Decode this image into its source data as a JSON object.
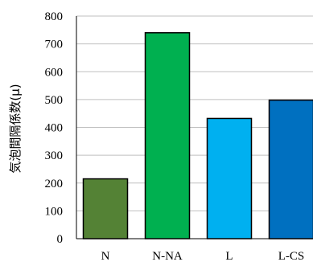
{
  "chart_data": {
    "type": "bar",
    "title": "",
    "xlabel": "",
    "ylabel": "気泡間隔係数(μ)",
    "categories": [
      "N",
      "N-NA",
      "L",
      "L-CS"
    ],
    "values": [
      215,
      740,
      432,
      498
    ],
    "ylim": [
      0,
      800
    ],
    "yticks": [
      0,
      100,
      200,
      300,
      400,
      500,
      600,
      700,
      800
    ],
    "grid": true,
    "legend": "none",
    "colors": [
      "#548235",
      "#00B050",
      "#00B0F0",
      "#0070C0"
    ]
  }
}
